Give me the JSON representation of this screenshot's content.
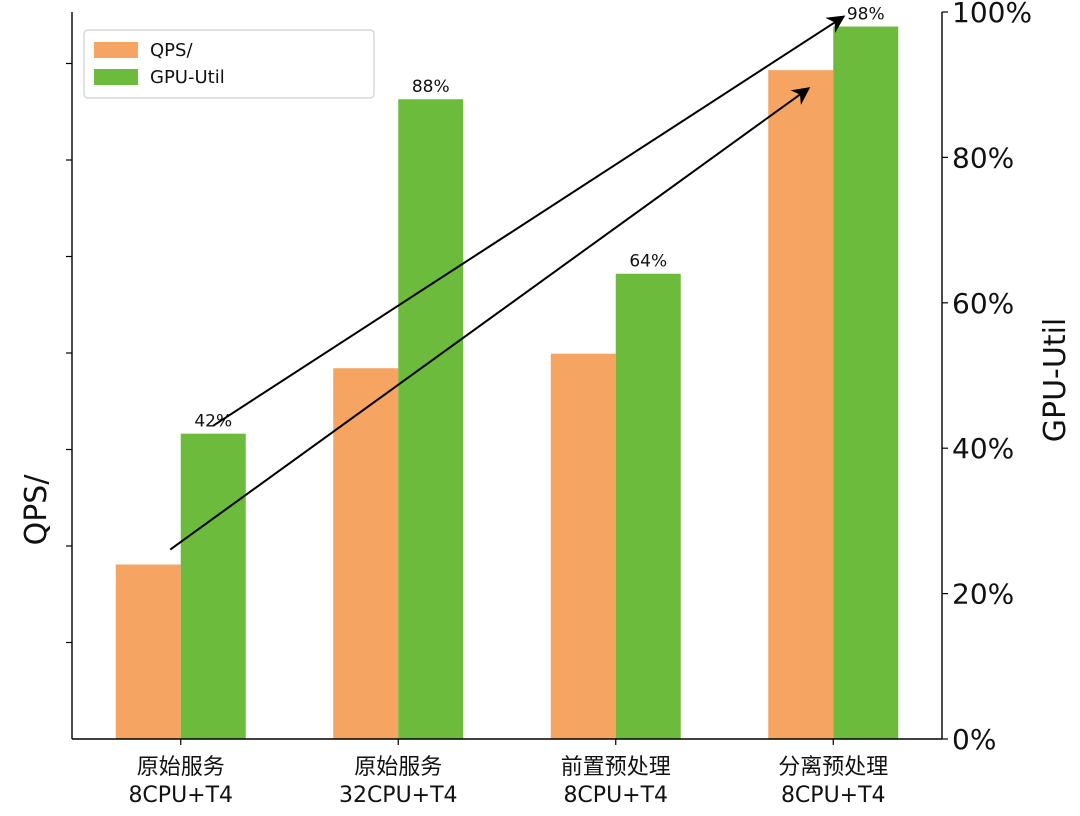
{
  "chart_data": {
    "type": "bar",
    "categories": [
      [
        "原始服务",
        "8CPU+T4"
      ],
      [
        "原始服务",
        "32CPU+T4"
      ],
      [
        "前置预处理",
        "8CPU+T4"
      ],
      [
        "分离预处理",
        "8CPU+T4"
      ]
    ],
    "series": [
      {
        "name": "QPS/",
        "axis": "left",
        "color": "#F5A462",
        "values": [
          0.24,
          0.51,
          0.53,
          0.92
        ]
      },
      {
        "name": "GPU-Util",
        "axis": "right",
        "color": "#6CBB3C",
        "values": [
          42,
          88,
          64,
          98
        ],
        "data_labels": [
          "42%",
          "88%",
          "64%",
          "98%"
        ]
      }
    ],
    "ylabel_left": "QPS/",
    "ylabel_right": "GPU-Util",
    "ylim_left": [
      0,
      1
    ],
    "ylim_right": [
      0,
      100
    ],
    "yticks_right": [
      "0%",
      "20%",
      "40%",
      "60%",
      "80%",
      "100%"
    ],
    "left_tick_labels_shown": false,
    "legend": "top-left",
    "grid": false,
    "annotations": [
      {
        "kind": "trend-arrow",
        "from_category": 0,
        "to_category": 3,
        "series": "QPS/"
      },
      {
        "kind": "trend-arrow",
        "from_category": 0,
        "to_category": 3,
        "series": "GPU-Util"
      }
    ]
  }
}
